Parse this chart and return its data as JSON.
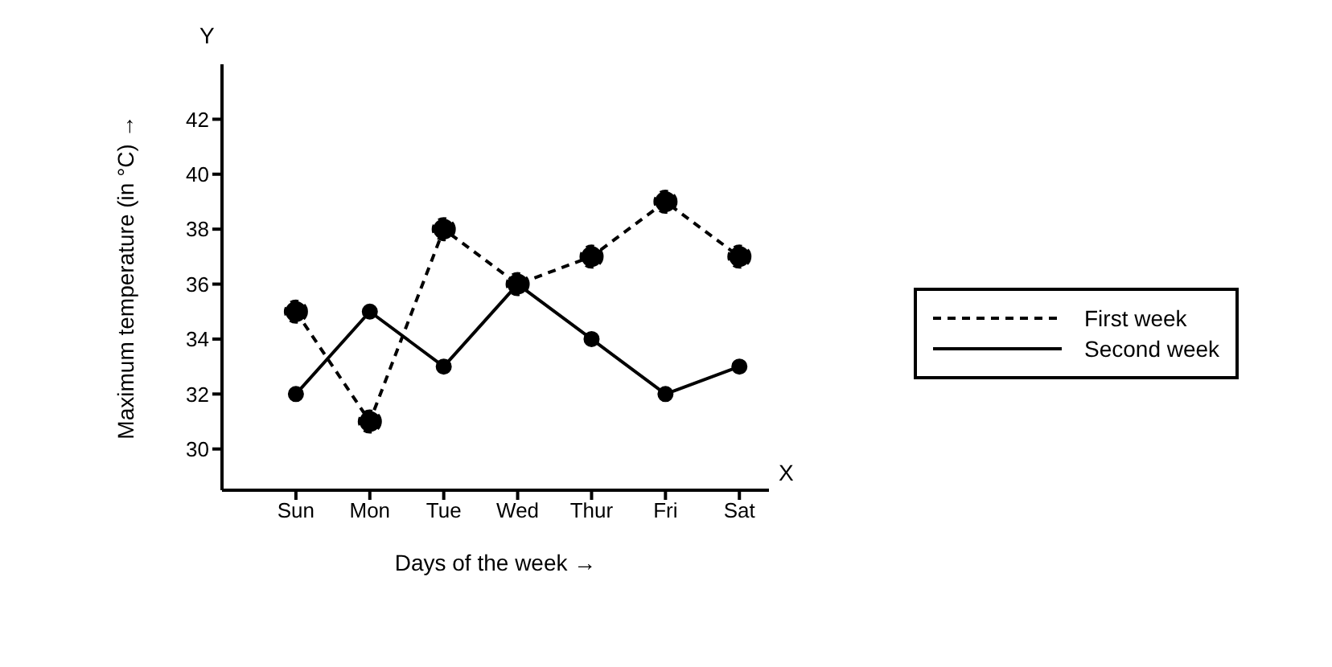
{
  "chart_data": {
    "type": "line",
    "xlabel": "Days of the week →",
    "ylabel": "Maximum temperature (in °C) →",
    "categories": [
      "Sun",
      "Mon",
      "Tue",
      "Wed",
      "Thur",
      "Fri",
      "Sat"
    ],
    "series": [
      {
        "name": "First week",
        "color": "#000000",
        "line_style": "dashed",
        "values": [
          35,
          31,
          38,
          36,
          37,
          39,
          37
        ]
      },
      {
        "name": "Second week",
        "color": "#000000",
        "line_style": "solid",
        "values": [
          32,
          35,
          33,
          36,
          34,
          32,
          33
        ]
      }
    ],
    "ylim": [
      28.5,
      44
    ],
    "yticks": [
      30,
      32,
      34,
      36,
      38,
      40,
      42
    ],
    "annotations": [
      "Y",
      "X"
    ],
    "grid": false,
    "legend": "right",
    "marker": "circle"
  }
}
